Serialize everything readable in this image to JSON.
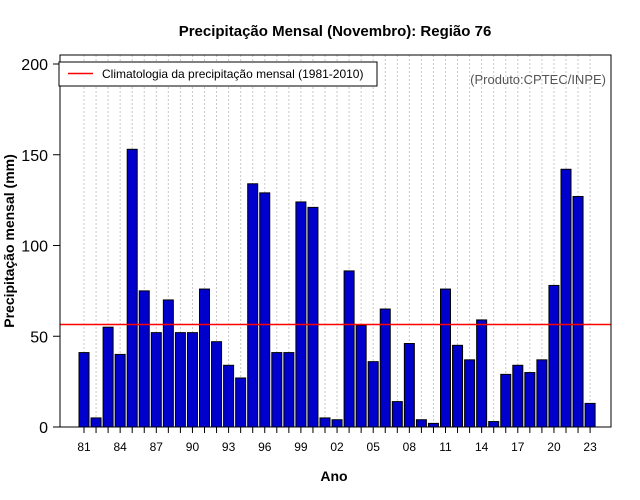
{
  "chart_data": {
    "type": "bar",
    "title": "Precipitação Mensal (Novembro): Região 76",
    "xlabel": "Ano",
    "ylabel": "Precipitação mensal (mm)",
    "ylim": [
      0,
      200
    ],
    "yticks": [
      0,
      50,
      100,
      150,
      200
    ],
    "categories": [
      "1981",
      "1982",
      "1983",
      "1984",
      "1985",
      "1986",
      "1987",
      "1988",
      "1989",
      "1990",
      "1991",
      "1992",
      "1993",
      "1994",
      "1995",
      "1996",
      "1997",
      "1998",
      "1999",
      "2000",
      "2001",
      "2002",
      "2003",
      "2004",
      "2005",
      "2006",
      "2007",
      "2008",
      "2009",
      "2010",
      "2011",
      "2012",
      "2013",
      "2014",
      "2015",
      "2016",
      "2017",
      "2018",
      "2019",
      "2020",
      "2021",
      "2022",
      "2023"
    ],
    "xtick_labels": [
      "81",
      "84",
      "87",
      "90",
      "93",
      "96",
      "99",
      "02",
      "05",
      "08",
      "11",
      "14",
      "17",
      "20",
      "23"
    ],
    "values": [
      41,
      5,
      55,
      40,
      153,
      75,
      52,
      70,
      52,
      52,
      76,
      47,
      34,
      27,
      134,
      129,
      41,
      41,
      124,
      121,
      5,
      4,
      86,
      56,
      36,
      65,
      14,
      46,
      4,
      2,
      76,
      45,
      37,
      59,
      3,
      29,
      34,
      30,
      37,
      78,
      142,
      127,
      13
    ],
    "bar_color": "#0000cc",
    "reference_line": {
      "label": "Climatologia da precipitação mensal (1981-2010)",
      "value": 56.5,
      "color": "#ff0000"
    },
    "legend_position": "top-left",
    "grid": "vertical-dotted"
  },
  "credit": "(Produto:CPTEC/INPE)"
}
